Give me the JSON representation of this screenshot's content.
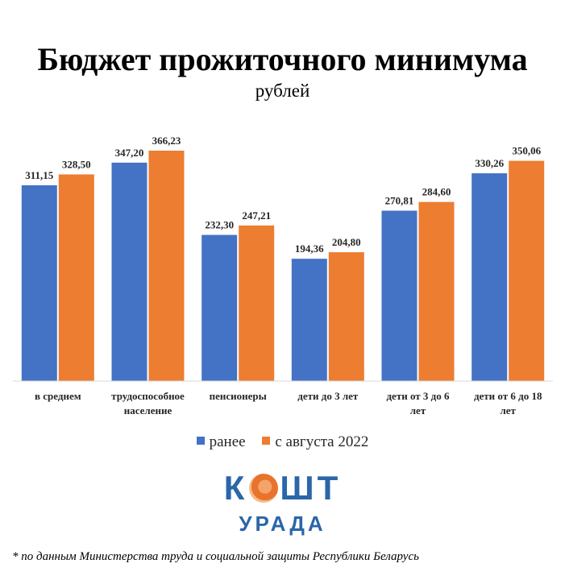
{
  "chart_data": {
    "type": "bar",
    "title": "Бюджет прожиточного минимума",
    "subtitle": "рублей",
    "categories": [
      [
        "в среднем"
      ],
      [
        "трудоспособное",
        "население"
      ],
      [
        "пенсионеры"
      ],
      [
        "дети до 3 лет"
      ],
      [
        "дети от 3 до 6",
        "лет"
      ],
      [
        "дети от 6 до 18",
        "лет"
      ]
    ],
    "series": [
      {
        "name": "ранее",
        "color": "#4472c4",
        "values": [
          311.15,
          347.2,
          232.3,
          194.36,
          270.81,
          330.26
        ],
        "labels": [
          "311,15",
          "347,20",
          "232,30",
          "194,36",
          "270,81",
          "330,26"
        ]
      },
      {
        "name": "с августа 2022",
        "color": "#ed7d31",
        "values": [
          328.5,
          366.23,
          247.21,
          204.8,
          284.6,
          350.06
        ],
        "labels": [
          "328,50",
          "366,23",
          "247,21",
          "204,80",
          "284,60",
          "350,06"
        ]
      }
    ],
    "ylim": [
      0,
      366.23
    ],
    "grid": false,
    "legend": "bottom"
  },
  "logo": {
    "top": "КОШТ",
    "top_left": "К",
    "top_right": "ШТ",
    "bottom": "УРАДА"
  },
  "footnote": "* по данным Министерства труда и социальной защиты Республики Беларусь"
}
